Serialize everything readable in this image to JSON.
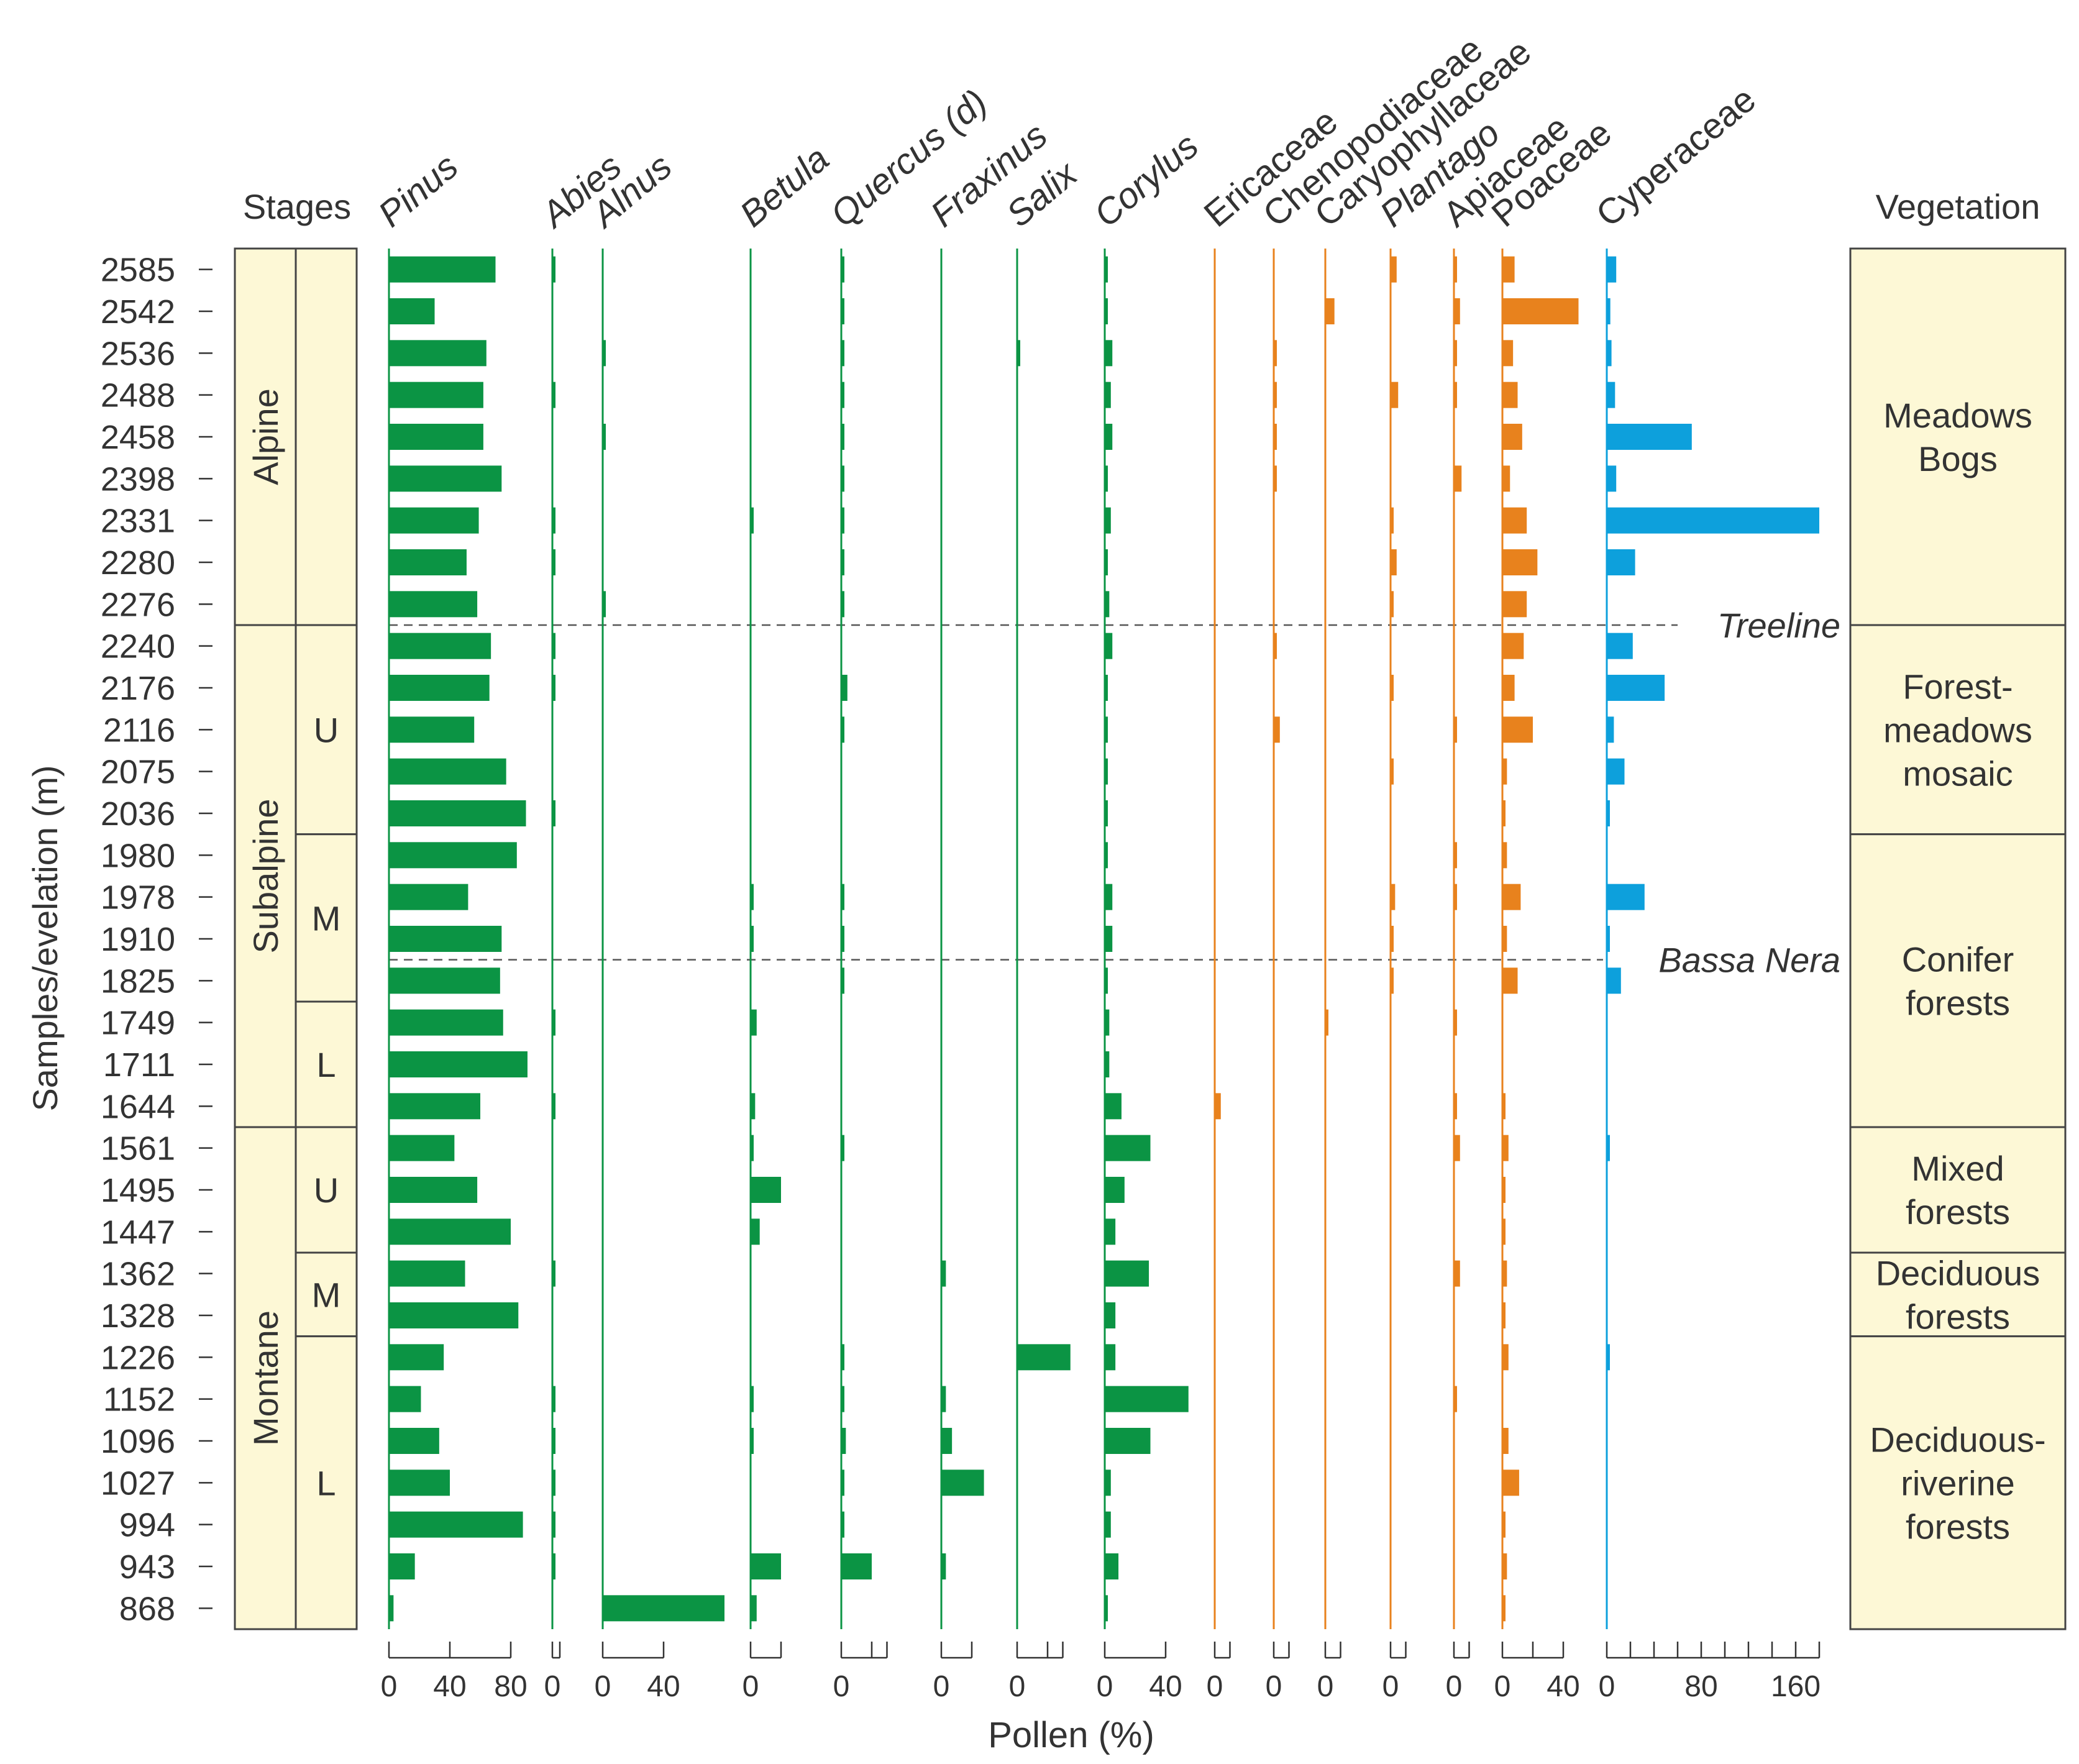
{
  "chart_data": {
    "type": "bar",
    "title": "",
    "xlabel": "Pollen (%)",
    "ylabel": "Samples/evelation (m)",
    "categories": [
      "2585",
      "2542",
      "2536",
      "2488",
      "2458",
      "2398",
      "2331",
      "2280",
      "2276",
      "2240",
      "2176",
      "2116",
      "2075",
      "2036",
      "1980",
      "1978",
      "1910",
      "1825",
      "1749",
      "1711",
      "1644",
      "1561",
      "1495",
      "1447",
      "1362",
      "1328",
      "1226",
      "1152",
      "1096",
      "1027",
      "994",
      "943",
      "868"
    ],
    "series": [
      {
        "name": "Pinus",
        "italic": true,
        "group": "tree",
        "color": "#0b9444",
        "ticks": [
          0,
          40,
          80
        ],
        "tick_labels": [
          "0",
          "40",
          "80"
        ],
        "xmax": 90,
        "values": [
          70,
          30,
          64,
          62,
          62,
          74,
          59,
          51,
          58,
          67,
          66,
          56,
          77,
          90,
          84,
          52,
          74,
          73,
          75,
          91,
          60,
          43,
          58,
          80,
          50,
          85,
          36,
          21,
          33,
          40,
          88,
          17,
          3
        ]
      },
      {
        "name": "Abies",
        "italic": true,
        "group": "tree",
        "color": "#0b9444",
        "ticks": [
          0,
          10
        ],
        "tick_labels": [
          "0"
        ],
        "xmax": 10,
        "values": [
          2,
          0,
          0,
          2,
          0,
          0,
          2,
          1,
          0,
          2,
          4,
          0,
          0,
          2,
          0,
          0,
          0,
          0,
          3,
          0,
          2,
          0,
          0,
          0,
          2,
          0,
          0,
          2,
          2,
          2,
          2,
          2,
          0
        ]
      },
      {
        "name": "Alnus",
        "italic": true,
        "group": "tree",
        "color": "#0b9444",
        "ticks": [
          0,
          40
        ],
        "tick_labels": [
          "0",
          "40"
        ],
        "xmax": 80,
        "values": [
          0,
          0,
          2,
          0,
          2,
          0,
          0,
          0,
          1,
          0,
          0,
          0,
          0,
          0,
          0,
          0,
          0,
          0,
          0,
          0,
          0,
          0,
          0,
          0,
          0,
          0,
          0,
          0,
          0,
          0,
          0,
          0,
          80
        ]
      },
      {
        "name": "Betula",
        "italic": true,
        "group": "tree",
        "color": "#0b9444",
        "ticks": [
          0,
          20
        ],
        "tick_labels": [
          "0"
        ],
        "xmax": 20,
        "values": [
          0,
          0,
          0,
          0,
          0,
          0,
          1,
          0,
          0,
          0,
          0,
          0,
          0,
          0,
          0,
          1,
          1,
          0,
          4,
          0,
          3,
          2,
          20,
          6,
          0,
          0,
          0,
          1,
          1,
          0,
          0,
          20,
          4
        ]
      },
      {
        "name": "Quercus (d)",
        "italic": true,
        "group": "tree",
        "color": "#0b9444",
        "ticks": [
          0,
          20,
          30
        ],
        "tick_labels": [
          "0"
        ],
        "xmax": 35,
        "values": [
          1,
          1,
          1,
          1,
          1,
          2,
          2,
          1,
          2,
          0,
          4,
          1,
          0,
          0,
          0,
          1,
          2,
          1,
          0,
          0,
          0,
          1,
          0,
          0,
          0,
          0,
          2,
          2,
          3,
          2,
          1,
          20,
          0
        ]
      },
      {
        "name": "Fraxinus",
        "italic": true,
        "group": "tree",
        "color": "#0b9444",
        "ticks": [
          0,
          20
        ],
        "tick_labels": [
          "0"
        ],
        "xmax": 30,
        "values": [
          0,
          0,
          0,
          0,
          0,
          0,
          0,
          0,
          0,
          0,
          0,
          0,
          0,
          0,
          0,
          0,
          0,
          0,
          0,
          0,
          0,
          0,
          0,
          0,
          3,
          0,
          0,
          3,
          7,
          28,
          0,
          3,
          0
        ]
      },
      {
        "name": "Salix",
        "italic": true,
        "group": "tree",
        "color": "#0b9444",
        "ticks": [
          0,
          20,
          30
        ],
        "tick_labels": [
          "0"
        ],
        "xmax": 35,
        "values": [
          0,
          0,
          2,
          0,
          0,
          0,
          0,
          0,
          0,
          0,
          0,
          0,
          0,
          0,
          0,
          0,
          0,
          0,
          0,
          0,
          0,
          0,
          0,
          0,
          0,
          0,
          35,
          0,
          0,
          0,
          0,
          0,
          0
        ]
      },
      {
        "name": "Corylus",
        "italic": true,
        "group": "tree",
        "color": "#0b9444",
        "ticks": [
          0,
          40
        ],
        "tick_labels": [
          "0",
          "40"
        ],
        "xmax": 55,
        "values": [
          2,
          2,
          5,
          4,
          5,
          2,
          4,
          2,
          3,
          5,
          2,
          2,
          1,
          1,
          2,
          5,
          5,
          2,
          3,
          3,
          11,
          30,
          13,
          7,
          29,
          7,
          7,
          55,
          30,
          4,
          4,
          9,
          1
        ]
      },
      {
        "name": "Ericaceae",
        "italic": false,
        "group": "herb",
        "color": "#e8821d",
        "ticks": [
          0,
          10
        ],
        "tick_labels": [
          "0"
        ],
        "xmax": 10,
        "values": [
          0,
          0,
          0,
          0,
          0,
          0,
          0,
          0,
          0,
          0,
          0,
          0,
          0,
          0,
          0,
          0,
          0,
          0,
          0,
          0,
          4,
          0,
          0,
          0,
          0,
          0,
          0,
          0,
          0,
          0,
          0,
          0,
          0
        ]
      },
      {
        "name": "Chenopodiaceae",
        "italic": false,
        "group": "herb",
        "color": "#e8821d",
        "ticks": [
          0,
          10
        ],
        "tick_labels": [
          "0"
        ],
        "xmax": 10,
        "values": [
          0,
          0,
          1,
          1,
          2,
          1,
          0,
          0,
          0,
          2,
          0,
          4,
          0,
          0,
          0,
          0,
          0,
          0,
          0,
          0,
          0,
          0,
          0,
          0,
          0,
          0,
          0,
          0,
          0,
          0,
          0,
          0,
          0
        ]
      },
      {
        "name": "Caryophyllaceae",
        "italic": false,
        "group": "herb",
        "color": "#e8821d",
        "ticks": [
          0,
          10
        ],
        "tick_labels": [
          "0"
        ],
        "xmax": 10,
        "values": [
          0,
          6,
          0,
          0,
          0,
          0,
          0,
          0,
          0,
          0,
          0,
          0,
          0,
          0,
          0,
          0,
          0,
          0,
          1,
          0,
          0,
          0,
          0,
          0,
          0,
          0,
          0,
          0,
          0,
          0,
          0,
          0,
          0
        ]
      },
      {
        "name": "Plantago",
        "italic": true,
        "group": "herb",
        "color": "#e8821d",
        "ticks": [
          0,
          10
        ],
        "tick_labels": [
          "0"
        ],
        "xmax": 10,
        "values": [
          4,
          0,
          0,
          5,
          0,
          0,
          2,
          4,
          1,
          0,
          1,
          0,
          1,
          0,
          0,
          3,
          1,
          1,
          0,
          0,
          0,
          0,
          0,
          0,
          0,
          0,
          0,
          0,
          0,
          0,
          0,
          0,
          0
        ]
      },
      {
        "name": "Apiaceae",
        "italic": false,
        "group": "herb",
        "color": "#e8821d",
        "ticks": [
          0,
          10
        ],
        "tick_labels": [
          "0"
        ],
        "xmax": 10,
        "values": [
          2,
          4,
          2,
          2,
          0,
          5,
          0,
          0,
          0,
          0,
          0,
          2,
          0,
          0,
          2,
          2,
          0,
          0,
          2,
          0,
          2,
          4,
          0,
          0,
          4,
          0,
          0,
          2,
          0,
          0,
          0,
          0,
          0
        ]
      },
      {
        "name": "Poaceae",
        "italic": false,
        "group": "herb",
        "color": "#e8821d",
        "ticks": [
          0,
          20,
          40
        ],
        "tick_labels": [
          "0",
          "40"
        ],
        "xmax": 50,
        "values": [
          8,
          50,
          7,
          10,
          13,
          5,
          16,
          23,
          16,
          14,
          8,
          20,
          3,
          2,
          3,
          12,
          3,
          10,
          0,
          0,
          1,
          4,
          1,
          1,
          3,
          2,
          4,
          0,
          4,
          11,
          1,
          3,
          2
        ]
      },
      {
        "name": "Cyperaceae",
        "italic": false,
        "group": "sedge",
        "color": "#0da0dc",
        "ticks": [
          0,
          20,
          40,
          60,
          80,
          100,
          120,
          140,
          160,
          180
        ],
        "tick_labels": [
          "0",
          "80",
          "160"
        ],
        "xmax": 180,
        "values": [
          8,
          3,
          4,
          7,
          72,
          8,
          180,
          24,
          0,
          22,
          49,
          6,
          15,
          2,
          0,
          32,
          2,
          12,
          0,
          0,
          0,
          2,
          0,
          0,
          0,
          0,
          2,
          0,
          0,
          0,
          0,
          0,
          0
        ]
      }
    ],
    "stages": [
      {
        "name": "Alpine",
        "from": "2585",
        "to": "2276"
      },
      {
        "name": "Subalpine",
        "from": "2240",
        "to": "1644"
      },
      {
        "name": "Montane",
        "from": "1561",
        "to": "868"
      }
    ],
    "substages": [
      {
        "name": "U",
        "from": "2240",
        "to": "2036"
      },
      {
        "name": "M",
        "from": "1980",
        "to": "1825"
      },
      {
        "name": "L",
        "from": "1749",
        "to": "1644"
      },
      {
        "name": "U",
        "from": "1561",
        "to": "1447"
      },
      {
        "name": "M",
        "from": "1362",
        "to": "1328"
      },
      {
        "name": "L",
        "from": "1226",
        "to": "868"
      }
    ],
    "vegetation": [
      {
        "lines": [
          "Meadows",
          "Bogs"
        ],
        "from": "2585",
        "to": "2276"
      },
      {
        "lines": [
          "Forest-",
          "meadows",
          "mosaic"
        ],
        "from": "2240",
        "to": "2036"
      },
      {
        "lines": [
          "Conifer",
          "forests"
        ],
        "from": "1980",
        "to": "1644"
      },
      {
        "lines": [
          "Mixed",
          "forests"
        ],
        "from": "1561",
        "to": "1447"
      },
      {
        "lines": [
          "Deciduous",
          "forests"
        ],
        "from": "1362",
        "to": "1328"
      },
      {
        "lines": [
          "Deciduous-",
          "riverine",
          "forests"
        ],
        "from": "1226",
        "to": "868"
      }
    ],
    "reference_lines": [
      {
        "label": "Treeline",
        "between": [
          "2276",
          "2240"
        ]
      },
      {
        "label": "Bassa Nera",
        "between": [
          "1910",
          "1825"
        ]
      }
    ],
    "stages_header": "Stages",
    "vegetation_header": "Vegetation"
  }
}
